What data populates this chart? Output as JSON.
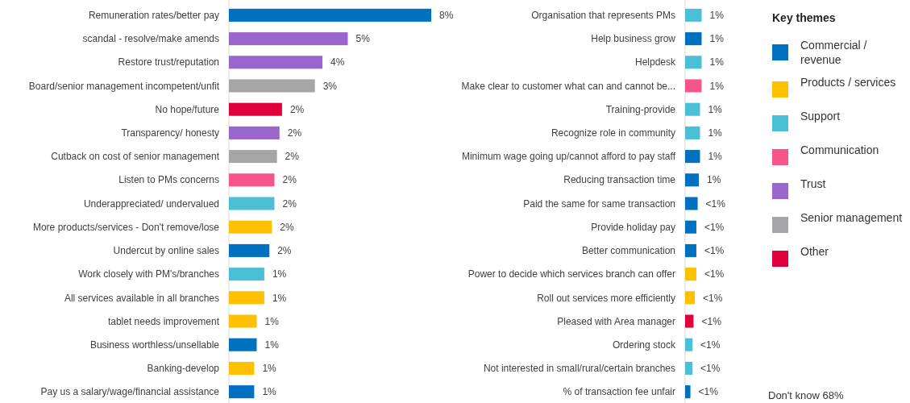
{
  "chart_data": [
    {
      "type": "bar",
      "orientation": "horizontal",
      "legend": false,
      "categories": [
        "Remuneration rates/better pay",
        "scandal - resolve/make amends",
        "Restore trust/reputation",
        "Board/senior management incompetent/unfit",
        "No hope/future",
        "Transparency/ honesty",
        "Cutback on cost of senior management",
        "Listen to PMs concerns",
        "Underappreciated/ undervalued",
        "More products/services - Don't remove/lose",
        "Undercut by online sales",
        "Work closely with PM's/branches",
        "All services available in all branches",
        "tablet needs improvement",
        "Business worthless/unsellable",
        "Banking-develop",
        "Pay us a salary/wage/financial assistance"
      ],
      "series": [
        {
          "color": "#0070c0",
          "values": [
            8.0,
            null,
            null,
            null,
            null,
            null,
            null,
            null,
            null,
            null,
            1.6,
            null,
            null,
            null,
            1.1,
            null,
            1.0
          ],
          "value_labels": [
            "8%",
            null,
            null,
            null,
            null,
            null,
            null,
            null,
            null,
            null,
            "2%",
            null,
            null,
            null,
            "1%",
            null,
            "1%"
          ]
        },
        {
          "color": "#ffc000",
          "values": [
            null,
            null,
            null,
            null,
            null,
            null,
            null,
            null,
            null,
            1.7,
            null,
            null,
            1.4,
            1.1,
            null,
            1.0,
            null
          ],
          "value_labels": [
            null,
            null,
            null,
            null,
            null,
            null,
            null,
            null,
            null,
            "2%",
            null,
            null,
            "1%",
            "1%",
            null,
            "1%",
            null
          ]
        },
        {
          "color": "#4bbfd6",
          "values": [
            null,
            null,
            null,
            null,
            null,
            null,
            null,
            null,
            1.8,
            null,
            null,
            1.4,
            null,
            null,
            null,
            null,
            null
          ],
          "value_labels": [
            null,
            null,
            null,
            null,
            null,
            null,
            null,
            null,
            "2%",
            null,
            null,
            "1%",
            null,
            null,
            null,
            null,
            null
          ]
        },
        {
          "color": "#f7548a",
          "values": [
            null,
            null,
            null,
            null,
            null,
            null,
            null,
            1.8,
            null,
            null,
            null,
            null,
            null,
            null,
            null,
            null,
            null
          ],
          "value_labels": [
            null,
            null,
            null,
            null,
            null,
            null,
            null,
            "2%",
            null,
            null,
            null,
            null,
            null,
            null,
            null,
            null,
            null
          ]
        },
        {
          "color": "#9966cc",
          "values": [
            null,
            4.7,
            3.7,
            null,
            null,
            2.0,
            null,
            null,
            null,
            null,
            null,
            null,
            null,
            null,
            null,
            null,
            null
          ],
          "value_labels": [
            null,
            "5%",
            "4%",
            null,
            null,
            "2%",
            null,
            null,
            null,
            null,
            null,
            null,
            null,
            null,
            null,
            null,
            null
          ]
        },
        {
          "color": "#a5a5a8",
          "values": [
            null,
            null,
            null,
            3.4,
            null,
            null,
            1.9,
            null,
            null,
            null,
            null,
            null,
            null,
            null,
            null,
            null,
            null
          ],
          "value_labels": [
            null,
            null,
            null,
            "3%",
            null,
            null,
            "2%",
            null,
            null,
            null,
            null,
            null,
            null,
            null,
            null,
            null,
            null
          ]
        },
        {
          "color": "#e0003c",
          "values": [
            null,
            null,
            null,
            null,
            2.1,
            null,
            null,
            null,
            null,
            null,
            null,
            null,
            null,
            null,
            null,
            null,
            null
          ],
          "value_labels": [
            null,
            null,
            null,
            null,
            "2%",
            null,
            null,
            null,
            null,
            null,
            null,
            null,
            null,
            null,
            null,
            null,
            null
          ]
        }
      ]
    },
    {
      "type": "bar",
      "orientation": "horizontal",
      "legend": "right",
      "legend_title": "Key themes",
      "categories": [
        "Organisation that represents PMs",
        "Help business grow",
        "Helpdesk",
        "Make clear to customer what can and cannot be...",
        "Training-provide",
        "Recognize role in community",
        "Minimum wage going up/cannot afford to pay staff",
        "Reducing transaction time",
        "Paid the same for same transaction",
        "Provide holiday pay",
        "Better communication",
        "Power to decide which services branch can offer",
        "Roll out services more efficiently",
        "Pleased with Area manager",
        "Ordering stock",
        "Not interested in small/rural/certain branches",
        "% of transaction fee unfair"
      ],
      "annotations": [
        "Don't know 68%"
      ],
      "series": [
        {
          "name": "Commercial / revenue",
          "color": "#0070c0",
          "values": [
            null,
            1,
            null,
            null,
            null,
            null,
            0.9,
            0.83,
            0.76,
            0.68,
            0.68,
            null,
            null,
            null,
            null,
            null,
            0.32
          ],
          "value_labels": [
            null,
            "1%",
            null,
            null,
            null,
            null,
            "1%",
            "1%",
            "<1%",
            "<1%",
            "<1%",
            null,
            null,
            null,
            null,
            null,
            "<1%"
          ]
        },
        {
          "name": "Products / services",
          "color": "#ffc000",
          "values": [
            null,
            null,
            null,
            null,
            null,
            null,
            null,
            null,
            null,
            null,
            null,
            0.68,
            0.59,
            null,
            null,
            null,
            null
          ],
          "value_labels": [
            null,
            null,
            null,
            null,
            null,
            null,
            null,
            null,
            null,
            null,
            null,
            "<1%",
            "<1%",
            null,
            null,
            null,
            null
          ]
        },
        {
          "name": "Support",
          "color": "#4bbfd6",
          "values": [
            1,
            null,
            1,
            null,
            0.9,
            0.9,
            null,
            null,
            null,
            null,
            null,
            null,
            null,
            null,
            0.44,
            0.44,
            null
          ],
          "value_labels": [
            "1%",
            null,
            "1%",
            null,
            "1%",
            "1%",
            null,
            null,
            null,
            null,
            null,
            null,
            null,
            null,
            "<1%",
            "<1%",
            null
          ]
        },
        {
          "name": "Communication",
          "color": "#f7548a",
          "values": [
            null,
            null,
            null,
            1,
            null,
            null,
            null,
            null,
            null,
            null,
            null,
            null,
            null,
            null,
            null,
            null,
            null
          ],
          "value_labels": [
            null,
            null,
            null,
            "1%",
            null,
            null,
            null,
            null,
            null,
            null,
            null,
            null,
            null,
            null,
            null,
            null,
            null
          ]
        },
        {
          "name": "Trust",
          "color": "#9966cc",
          "values": [
            null,
            null,
            null,
            null,
            null,
            null,
            null,
            null,
            null,
            null,
            null,
            null,
            null,
            null,
            null,
            null,
            null
          ]
        },
        {
          "name": "Senior management",
          "color": "#a5a5a8",
          "values": [
            null,
            null,
            null,
            null,
            null,
            null,
            null,
            null,
            null,
            null,
            null,
            null,
            null,
            null,
            null,
            null,
            null
          ]
        },
        {
          "name": "Other",
          "color": "#e0003c",
          "values": [
            null,
            null,
            null,
            null,
            null,
            null,
            null,
            null,
            null,
            null,
            null,
            null,
            null,
            0.51,
            null,
            null,
            null
          ],
          "value_labels": [
            null,
            null,
            null,
            null,
            null,
            null,
            null,
            null,
            null,
            null,
            null,
            null,
            null,
            "<1%",
            null,
            null,
            null
          ]
        }
      ]
    }
  ]
}
